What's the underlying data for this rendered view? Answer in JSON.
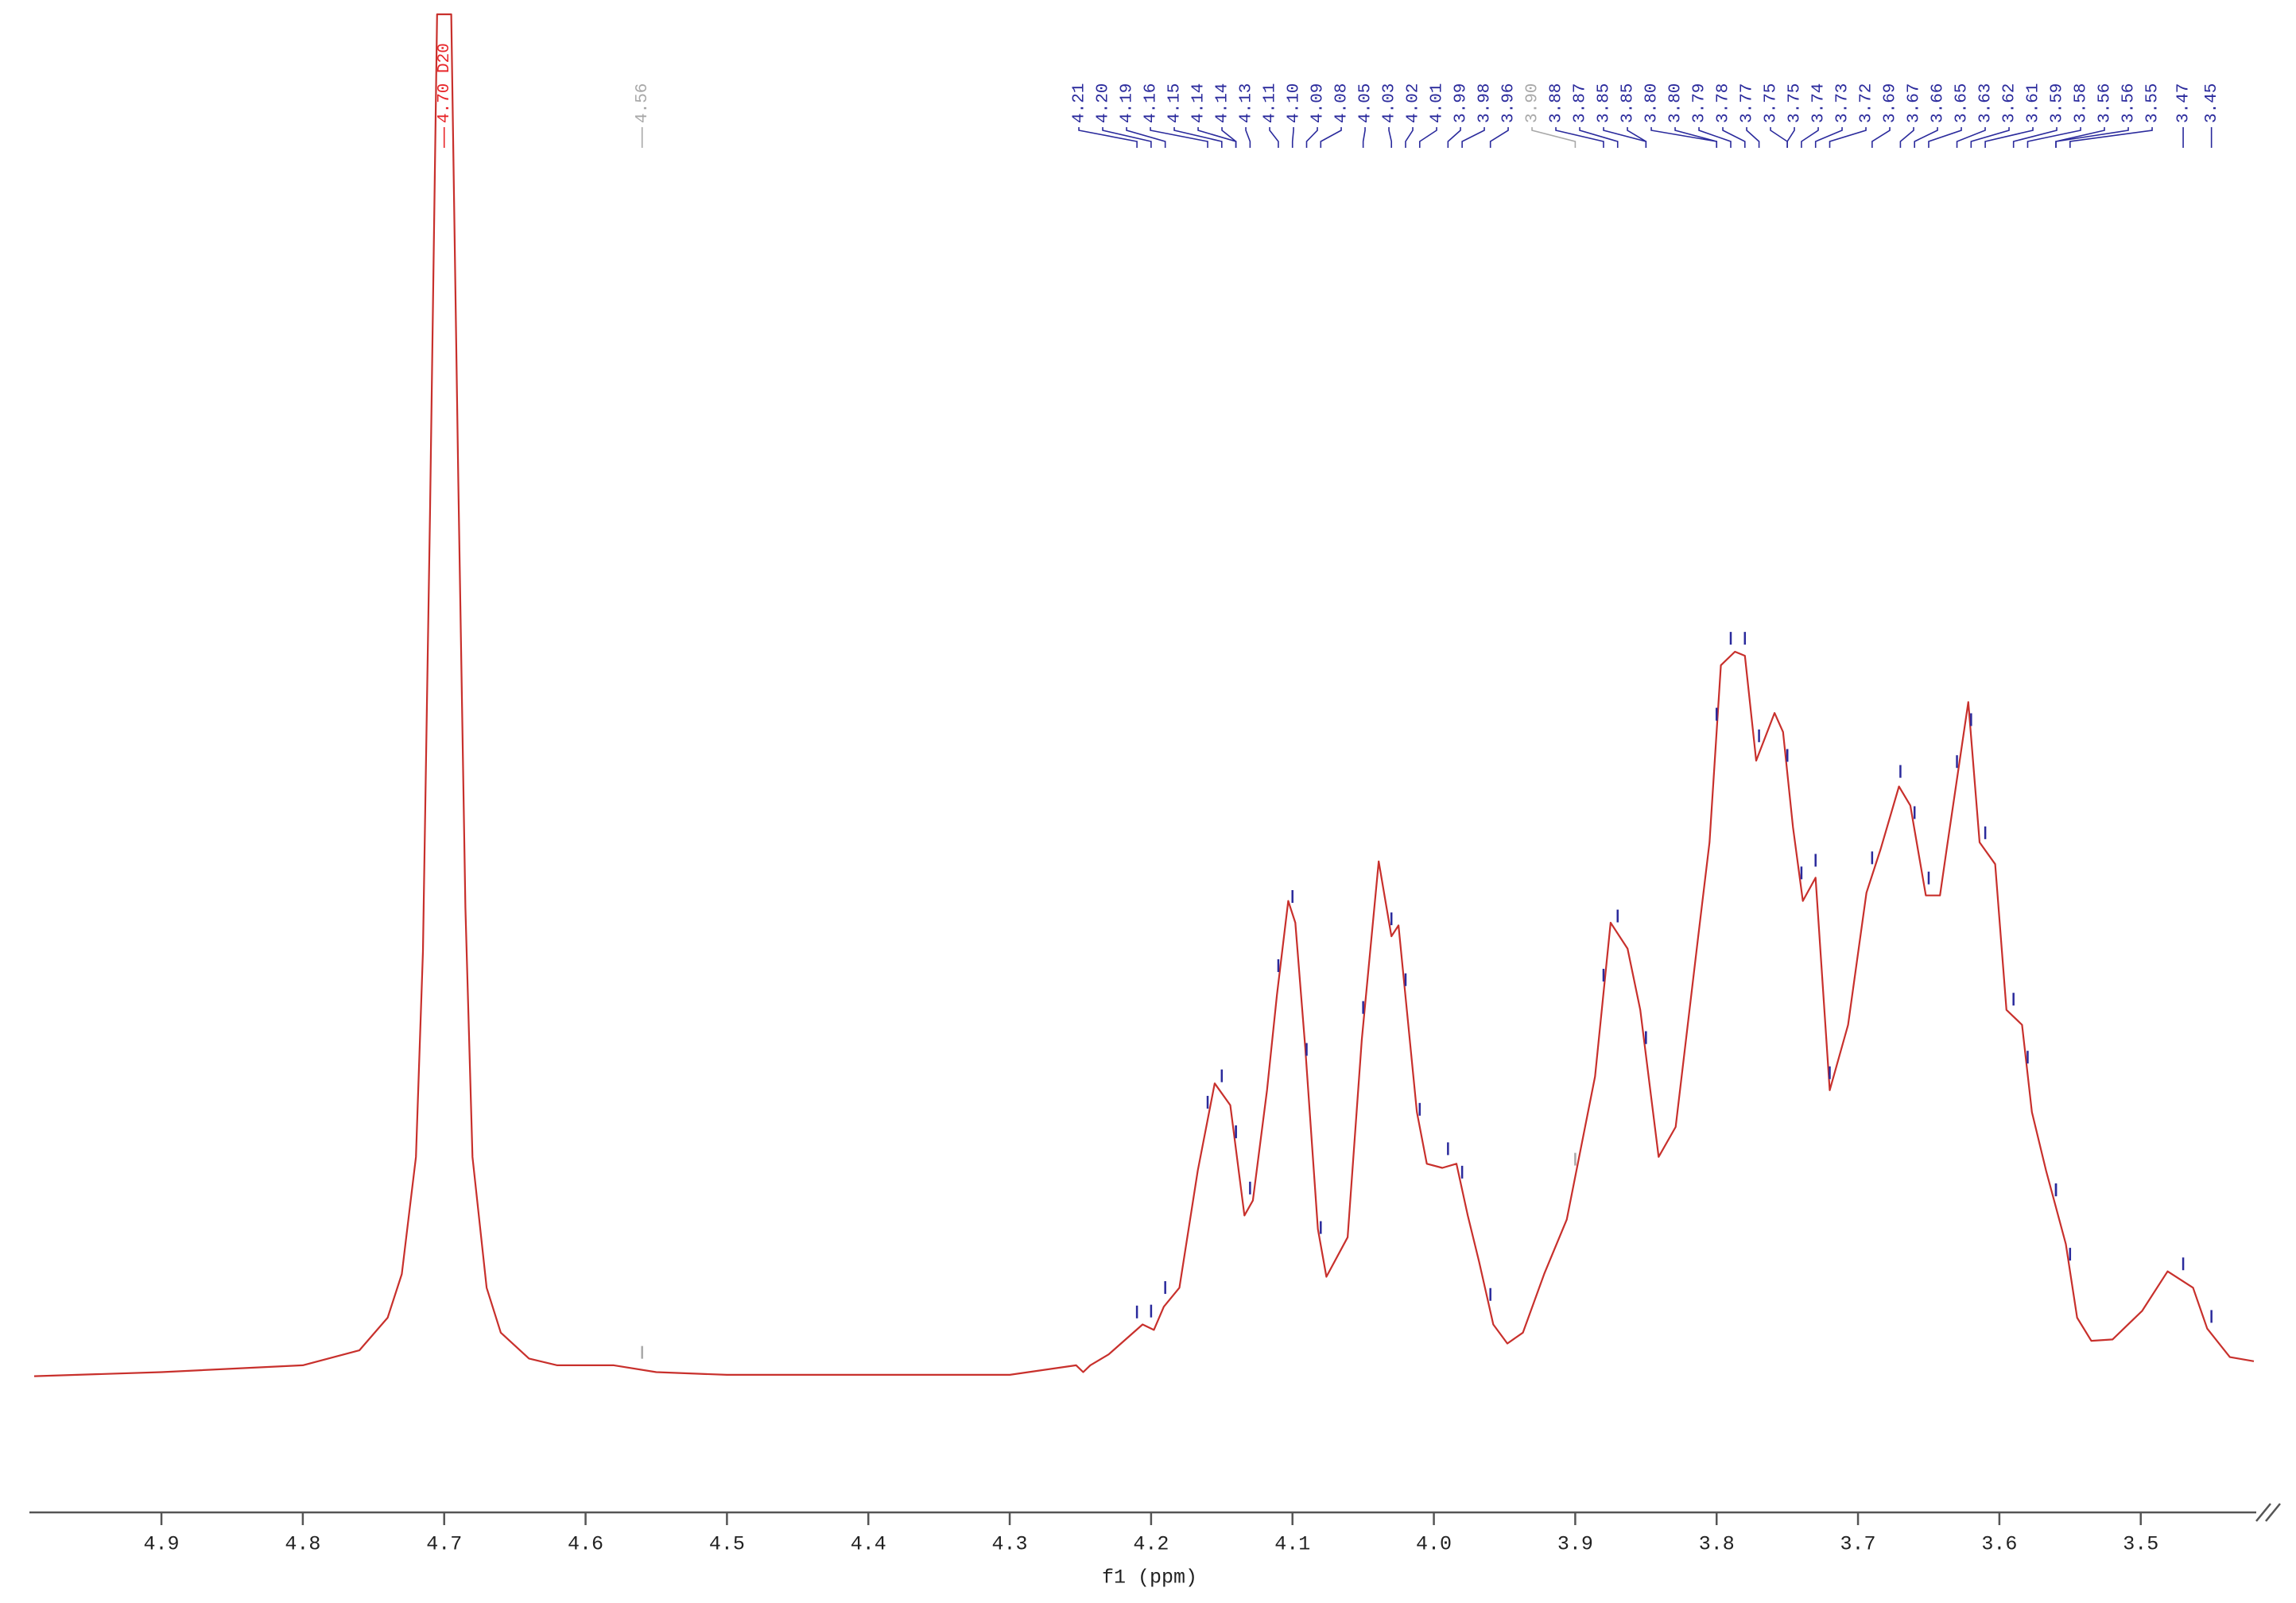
{
  "chart_data": {
    "type": "line",
    "x_label": "f1 (ppm)",
    "xlim": [
      4.99,
      3.42
    ],
    "ylim": [
      -10,
      100
    ],
    "xticks": [
      4.9,
      4.8,
      4.7,
      4.6,
      4.5,
      4.4,
      4.3,
      4.2,
      4.1,
      {
        "value": 4,
        "label": "4.0"
      },
      3.9,
      3.8,
      3.7,
      3.6,
      3.5
    ],
    "x": [
      4.99,
      4.9,
      4.8,
      4.76,
      4.74,
      4.73,
      4.72,
      4.715,
      4.71,
      4.705,
      4.695,
      4.69,
      4.685,
      4.68,
      4.67,
      4.66,
      4.64,
      4.62,
      4.58,
      4.55,
      4.5,
      4.3,
      4.253,
      4.248,
      4.243,
      4.23,
      4.206,
      4.198,
      4.191,
      4.18,
      4.167,
      4.155,
      4.144,
      4.134,
      4.128,
      4.118,
      4.111,
      4.103,
      4.098,
      4.091,
      4.082,
      4.076,
      4.061,
      4.051,
      4.039,
      4.03,
      4.025,
      4.012,
      4.005,
      3.994,
      3.984,
      3.976,
      3.968,
      3.958,
      3.948,
      3.937,
      3.922,
      3.906,
      3.886,
      3.875,
      3.863,
      3.854,
      3.841,
      3.829,
      3.813,
      3.805,
      3.797,
      3.787,
      3.78,
      3.772,
      3.759,
      3.753,
      3.746,
      3.739,
      3.73,
      3.72,
      3.707,
      3.694,
      3.684,
      3.671,
      3.663,
      3.652,
      3.642,
      3.637,
      3.622,
      3.614,
      3.603,
      3.595,
      3.584,
      3.577,
      3.567,
      3.553,
      3.545,
      3.535,
      3.52,
      3.499,
      3.481,
      3.463,
      3.453,
      3.437,
      3.42
    ],
    "series": [
      {
        "color": "#c8302c",
        "values": [
          0,
          0.3,
          0.8,
          1.9,
          4.3,
          7.5,
          16.1,
          31.2,
          63.4,
          100,
          100,
          65.6,
          34.4,
          16.1,
          6.5,
          3.2,
          1.3,
          0.8,
          0.8,
          0.3,
          0.1,
          0.1,
          0.8,
          0.3,
          0.8,
          1.6,
          3.8,
          3.4,
          5.1,
          6.5,
          15.1,
          21.5,
          19.9,
          11.8,
          12.9,
          21.0,
          28.0,
          34.9,
          33.3,
          24.2,
          10.8,
          7.3,
          10.2,
          24.7,
          37.8,
          32.3,
          33.1,
          19.4,
          15.6,
          15.3,
          15.6,
          11.8,
          8.4,
          3.8,
          2.4,
          3.2,
          7.5,
          11.5,
          22.0,
          33.3,
          31.4,
          26.9,
          16.1,
          18.3,
          32.3,
          39.2,
          52.2,
          53.2,
          52.9,
          45.2,
          48.7,
          47.3,
          40.3,
          34.9,
          36.6,
          21.0,
          25.8,
          35.5,
          38.7,
          43.3,
          41.9,
          35.3,
          35.3,
          38.9,
          49.5,
          39.2,
          37.6,
          26.9,
          25.8,
          19.4,
          15.1,
          9.7,
          4.3,
          2.6,
          2.7,
          4.8,
          7.7,
          6.5,
          3.5,
          1.4,
          1.1
        ]
      }
    ],
    "peak_labels": [
      {
        "color": "#e8262a",
        "labels": [
          {
            "value": 4.7,
            "label": "4.70 D20"
          }
        ]
      },
      {
        "color": "#a8a8a8",
        "labels": [
          4.56
        ]
      },
      {
        "color": "#2a2a9c",
        "labels": [
          4.21,
          {
            "value": 4.2,
            "label": "4.20"
          },
          4.19,
          4.16,
          4.15,
          4.14,
          4.14,
          4.13,
          4.11,
          {
            "value": 4.1,
            "label": "4.10"
          },
          4.09,
          4.08,
          4.05,
          4.03,
          4.02,
          4.01,
          3.99,
          3.98,
          3.96
        ]
      },
      {
        "color": "#a8a8a8",
        "labels": [
          {
            "value": 3.9,
            "label": "3.90"
          }
        ]
      },
      {
        "color": "#2a2a9c",
        "labels": [
          3.88,
          3.87,
          3.85,
          3.85,
          {
            "value": 3.8,
            "label": "3.80"
          },
          {
            "value": 3.8,
            "label": "3.80"
          },
          3.79,
          3.78,
          3.77,
          3.75,
          3.75,
          3.74,
          3.73,
          3.72,
          3.69,
          3.67,
          3.66,
          3.65,
          3.63,
          3.62,
          3.61,
          3.59,
          3.58,
          3.56,
          3.56,
          3.55,
          3.47,
          3.45
        ]
      }
    ]
  }
}
